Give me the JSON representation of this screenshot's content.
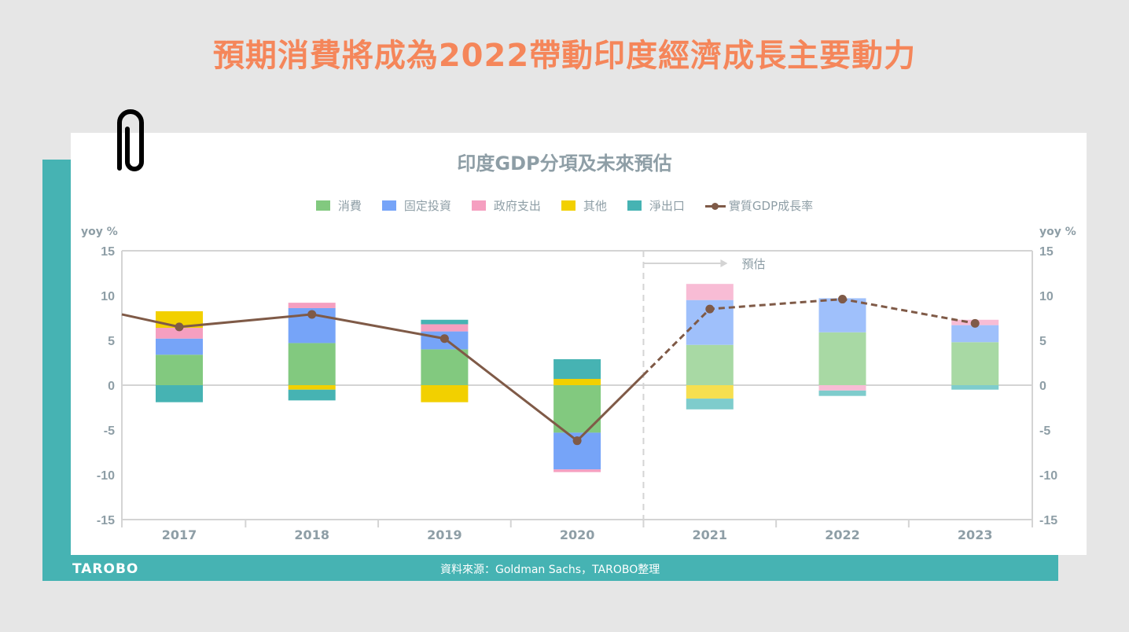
{
  "headline": "預期消費將成為2022帶動印度經濟成長主要動力",
  "footer": {
    "logo_text": "TAROBO",
    "source": "資料來源：Goldman Sachs，TAROBO整理"
  },
  "icons": {
    "clip": "paperclip-icon"
  },
  "colors": {
    "headline": "#f5865a",
    "band": "#46b3b3",
    "line": "#7f5a47"
  },
  "chart_data": {
    "type": "bar",
    "stacked": true,
    "title": "印度GDP分項及未來預估",
    "ylabel_left": "yoy %",
    "ylabel_right": "yoy %",
    "ylim": [
      -15,
      15
    ],
    "yticks": [
      15,
      10,
      5,
      0,
      -5,
      -10,
      -15
    ],
    "grid": false,
    "legend_position": "top",
    "categories": [
      "2017",
      "2018",
      "2019",
      "2020",
      "2021",
      "2022",
      "2023"
    ],
    "forecast_from": "2021",
    "forecast_label": "預估",
    "series": [
      {
        "name": "消費",
        "color": "#82c97f",
        "forecast_color": "#a8d9a4",
        "values": [
          3.4,
          4.7,
          4.0,
          -5.3,
          4.5,
          5.9,
          4.8
        ]
      },
      {
        "name": "固定投資",
        "color": "#76a4f8",
        "forecast_color": "#9fc0fb",
        "values": [
          1.8,
          3.9,
          2.0,
          -4.1,
          5.0,
          3.8,
          1.9
        ]
      },
      {
        "name": "政府支出",
        "color": "#f59fc0",
        "forecast_color": "#f8bcd5",
        "values": [
          1.2,
          0.6,
          0.8,
          -0.3,
          1.8,
          -0.6,
          0.6
        ]
      },
      {
        "name": "其他",
        "color": "#f2d000",
        "forecast_color": "#f6df50",
        "values": [
          1.85,
          -0.5,
          -1.9,
          0.7,
          -1.5,
          0,
          0
        ]
      },
      {
        "name": "淨出口",
        "color": "#46b3b3",
        "forecast_color": "#7ecccc",
        "values": [
          -1.9,
          -1.2,
          0.5,
          2.2,
          -1.2,
          -0.6,
          -0.5
        ]
      }
    ],
    "line_series": {
      "name": "實質GDP成長率",
      "color": "#7f5a47",
      "values": [
        6.5,
        7.9,
        5.2,
        -6.2,
        8.5,
        9.6,
        6.9
      ],
      "prior_value": 7.9
    }
  }
}
